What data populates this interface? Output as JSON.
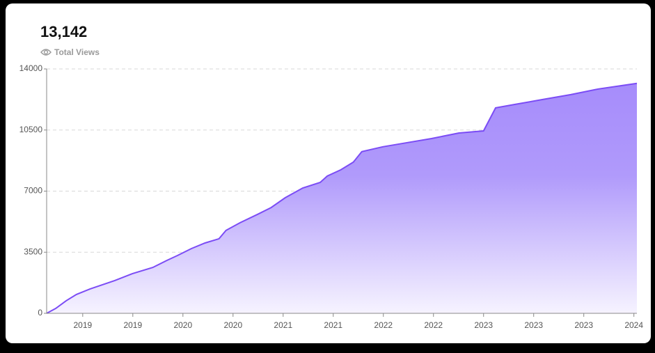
{
  "chart_data": {
    "type": "area",
    "title": "13,142",
    "subtitle": "Total Views",
    "x": [
      -0.72,
      -0.54,
      -0.33,
      -0.125,
      0.15,
      0.64,
      0.99,
      1.4,
      1.68,
      1.89,
      2.17,
      2.44,
      2.72,
      2.86,
      3.14,
      3.49,
      3.76,
      4.04,
      4.39,
      4.74,
      4.88,
      5.15,
      5.4,
      5.57,
      5.99,
      6.4,
      6.96,
      7.51,
      8.0,
      8.24,
      8.63,
      9.18,
      9.74,
      10.29,
      11.06
    ],
    "series": [
      {
        "name": "Total Views",
        "color": "#7b4cf5",
        "values": [
          0,
          280,
          720,
          1080,
          1400,
          1880,
          2270,
          2630,
          3030,
          3310,
          3710,
          4030,
          4270,
          4750,
          5190,
          5670,
          6060,
          6620,
          7180,
          7500,
          7860,
          8220,
          8660,
          9260,
          9540,
          9740,
          10010,
          10330,
          10450,
          11770,
          11970,
          12250,
          12530,
          12850,
          13170
        ]
      }
    ],
    "xlim": [
      -0.72,
      11.06
    ],
    "xticks": [
      {
        "value": 0,
        "label": "2019"
      },
      {
        "value": 1,
        "label": "2019"
      },
      {
        "value": 2,
        "label": "2020"
      },
      {
        "value": 3,
        "label": "2020"
      },
      {
        "value": 4,
        "label": "2021"
      },
      {
        "value": 5,
        "label": "2021"
      },
      {
        "value": 6,
        "label": "2022"
      },
      {
        "value": 7,
        "label": "2022"
      },
      {
        "value": 8,
        "label": "2023"
      },
      {
        "value": 9,
        "label": "2023"
      },
      {
        "value": 10,
        "label": "2023"
      },
      {
        "value": 11,
        "label": "2024"
      }
    ],
    "ylim": [
      0,
      14000
    ],
    "yticks": [
      0,
      3500,
      7000,
      10500,
      14000
    ],
    "grid": true
  }
}
